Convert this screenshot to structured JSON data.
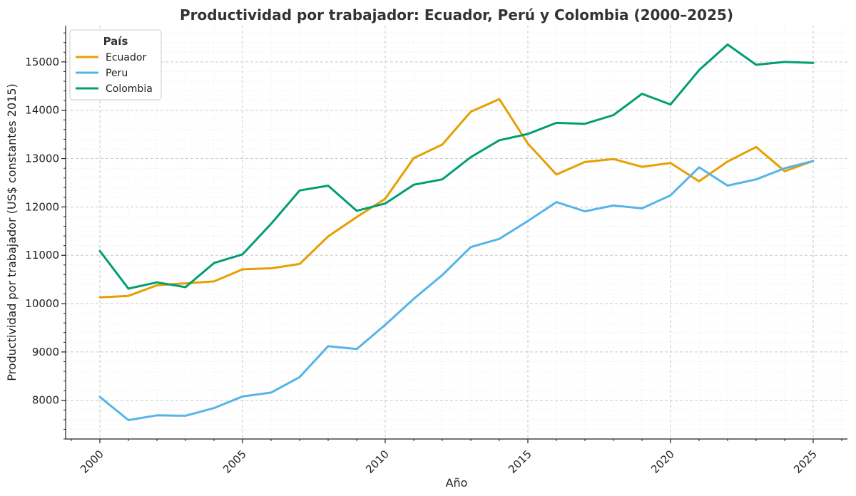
{
  "chart_data": {
    "type": "line",
    "title": "Productividad por trabajador: Ecuador, Perú y Colombia (2000–2025)",
    "xlabel": "Año",
    "ylabel": "Productividad por trabajador (US$ constantes 2015)",
    "xlim": [
      1998.8,
      2026.2
    ],
    "ylim": [
      7200,
      15750
    ],
    "x_ticks": [
      2000,
      2005,
      2010,
      2015,
      2020,
      2025
    ],
    "y_ticks": [
      8000,
      9000,
      10000,
      11000,
      12000,
      13000,
      14000,
      15000
    ],
    "grid": true,
    "legend": {
      "title": "País",
      "position": "top-left"
    },
    "x": [
      2000,
      2001,
      2002,
      2003,
      2004,
      2005,
      2006,
      2007,
      2008,
      2009,
      2010,
      2011,
      2012,
      2013,
      2014,
      2015,
      2016,
      2017,
      2018,
      2019,
      2020,
      2021,
      2022,
      2023,
      2024,
      2025
    ],
    "series": [
      {
        "name": "Ecuador",
        "color": "#E69F00",
        "values": [
          10130,
          10160,
          10380,
          10420,
          10460,
          10710,
          10730,
          10820,
          11390,
          11790,
          12170,
          13010,
          13290,
          13970,
          14230,
          13310,
          12670,
          12930,
          12990,
          12830,
          12910,
          12530,
          12940,
          13240,
          12740,
          12950
        ]
      },
      {
        "name": "Peru",
        "color": "#56B4E9",
        "values": [
          8070,
          7590,
          7690,
          7680,
          7840,
          8080,
          8160,
          8480,
          9120,
          9060,
          9560,
          10100,
          10590,
          11170,
          11340,
          11710,
          12100,
          11910,
          12030,
          11970,
          12240,
          12820,
          12440,
          12570,
          12800,
          12950
        ]
      },
      {
        "name": "Colombia",
        "color": "#009E73",
        "values": [
          11090,
          10310,
          10440,
          10340,
          10840,
          11020,
          11650,
          12340,
          12440,
          11920,
          12070,
          12460,
          12570,
          13030,
          13380,
          13510,
          13740,
          13720,
          13900,
          14340,
          14120,
          14830,
          15360,
          14940,
          15000,
          14980
        ]
      }
    ]
  }
}
